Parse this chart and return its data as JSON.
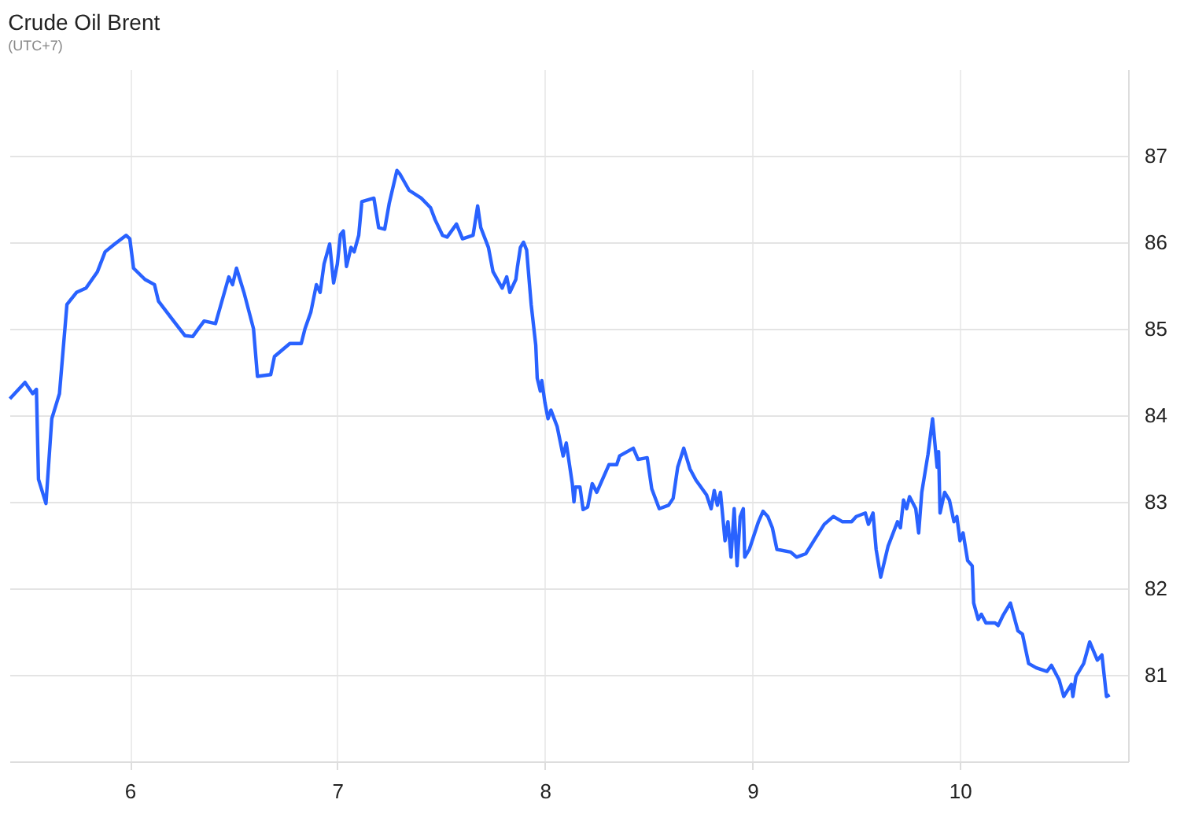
{
  "chart_data": {
    "type": "line",
    "title": "Crude Oil Brent",
    "subtitle": "(UTC+7)",
    "x": [
      5.422,
      5.495,
      5.532,
      5.55,
      5.56,
      5.596,
      5.624,
      5.661,
      5.697,
      5.743,
      5.789,
      5.844,
      5.881,
      5.927,
      5.982,
      6.0,
      6.018,
      6.073,
      6.119,
      6.138,
      6.211,
      6.266,
      6.303,
      6.358,
      6.413,
      6.477,
      6.495,
      6.514,
      6.55,
      6.596,
      6.615,
      6.679,
      6.697,
      6.771,
      6.826,
      6.844,
      6.872,
      6.899,
      6.917,
      6.936,
      6.963,
      6.982,
      7.0,
      7.015,
      7.029,
      7.044,
      7.066,
      7.081,
      7.103,
      7.118,
      7.176,
      7.199,
      7.228,
      7.25,
      7.287,
      7.301,
      7.346,
      7.404,
      7.449,
      7.471,
      7.507,
      7.529,
      7.574,
      7.603,
      7.654,
      7.676,
      7.691,
      7.728,
      7.75,
      7.794,
      7.816,
      7.831,
      7.86,
      7.868,
      7.882,
      7.897,
      7.912,
      7.934,
      7.956,
      7.963,
      7.978,
      7.985,
      8.0,
      8.015,
      8.029,
      8.059,
      8.088,
      8.103,
      8.132,
      8.14,
      8.147,
      8.169,
      8.184,
      8.206,
      8.228,
      8.25,
      8.309,
      8.346,
      8.36,
      8.426,
      8.449,
      8.493,
      8.515,
      8.551,
      8.596,
      8.618,
      8.64,
      8.669,
      8.699,
      8.728,
      8.779,
      8.801,
      8.816,
      8.831,
      8.846,
      8.868,
      8.882,
      8.897,
      8.912,
      8.926,
      8.941,
      8.956,
      8.963,
      8.985,
      9.029,
      9.051,
      9.074,
      9.096,
      9.118,
      9.184,
      9.213,
      9.257,
      9.301,
      9.346,
      9.39,
      9.434,
      9.478,
      9.5,
      9.544,
      9.559,
      9.581,
      9.596,
      9.618,
      9.654,
      9.699,
      9.713,
      9.728,
      9.743,
      9.757,
      9.787,
      9.801,
      9.816,
      9.846,
      9.868,
      9.89,
      9.897,
      9.904,
      9.926,
      9.949,
      9.971,
      9.985,
      10.0,
      10.015,
      10.037,
      10.059,
      10.066,
      10.088,
      10.103,
      10.125,
      10.169,
      10.184,
      10.206,
      10.243,
      10.279,
      10.301,
      10.331,
      10.368,
      10.419,
      10.441,
      10.478,
      10.5,
      10.537,
      10.544,
      10.559,
      10.596,
      10.625,
      10.662,
      10.684,
      10.706,
      10.721
    ],
    "series": [
      {
        "color": "#2962ff",
        "values": [
          84.19,
          84.38,
          84.25,
          84.3,
          83.26,
          82.98,
          83.96,
          84.25,
          85.28,
          85.42,
          85.47,
          85.66,
          85.89,
          85.98,
          86.08,
          86.04,
          85.7,
          85.57,
          85.51,
          85.32,
          85.09,
          84.92,
          84.91,
          85.09,
          85.06,
          85.6,
          85.51,
          85.7,
          85.42,
          85.0,
          84.45,
          84.47,
          84.68,
          84.83,
          84.83,
          85.0,
          85.19,
          85.51,
          85.42,
          85.75,
          85.98,
          85.53,
          85.75,
          86.09,
          86.13,
          85.72,
          85.94,
          85.89,
          86.08,
          86.47,
          86.51,
          86.17,
          86.15,
          86.45,
          86.83,
          86.79,
          86.6,
          86.51,
          86.4,
          86.26,
          86.08,
          86.06,
          86.21,
          86.04,
          86.08,
          86.42,
          86.17,
          85.94,
          85.66,
          85.47,
          85.6,
          85.42,
          85.57,
          85.72,
          85.94,
          86.0,
          85.91,
          85.28,
          84.81,
          84.43,
          84.28,
          84.4,
          84.15,
          83.96,
          84.06,
          83.87,
          83.53,
          83.68,
          83.21,
          83.0,
          83.17,
          83.17,
          82.91,
          82.94,
          83.21,
          83.11,
          83.43,
          83.43,
          83.53,
          83.62,
          83.49,
          83.51,
          83.15,
          82.92,
          82.96,
          83.04,
          83.4,
          83.62,
          83.38,
          83.25,
          83.08,
          82.92,
          83.13,
          82.96,
          83.11,
          82.55,
          82.77,
          82.36,
          82.92,
          82.26,
          82.83,
          82.92,
          82.36,
          82.45,
          82.77,
          82.89,
          82.83,
          82.7,
          82.45,
          82.42,
          82.36,
          82.4,
          82.57,
          82.74,
          82.83,
          82.77,
          82.77,
          82.83,
          82.87,
          82.74,
          82.87,
          82.45,
          82.13,
          82.49,
          82.77,
          82.7,
          83.02,
          82.92,
          83.06,
          82.92,
          82.64,
          83.11,
          83.55,
          83.96,
          83.4,
          83.58,
          82.87,
          83.11,
          83.02,
          82.77,
          82.83,
          82.55,
          82.64,
          82.32,
          82.26,
          81.83,
          81.64,
          81.7,
          81.6,
          81.6,
          81.57,
          81.68,
          81.83,
          81.51,
          81.47,
          81.13,
          81.08,
          81.04,
          81.11,
          80.94,
          80.75,
          80.89,
          80.75,
          80.98,
          81.13,
          81.38,
          81.17,
          81.23,
          80.75,
          80.77
        ]
      }
    ],
    "xlim": [
      5.42,
      10.81
    ],
    "xticks": [
      6,
      7,
      8,
      9,
      10
    ],
    "ylim": [
      80,
      88
    ],
    "yticks": [
      81,
      82,
      83,
      84,
      85,
      86,
      87
    ],
    "grid": true
  }
}
